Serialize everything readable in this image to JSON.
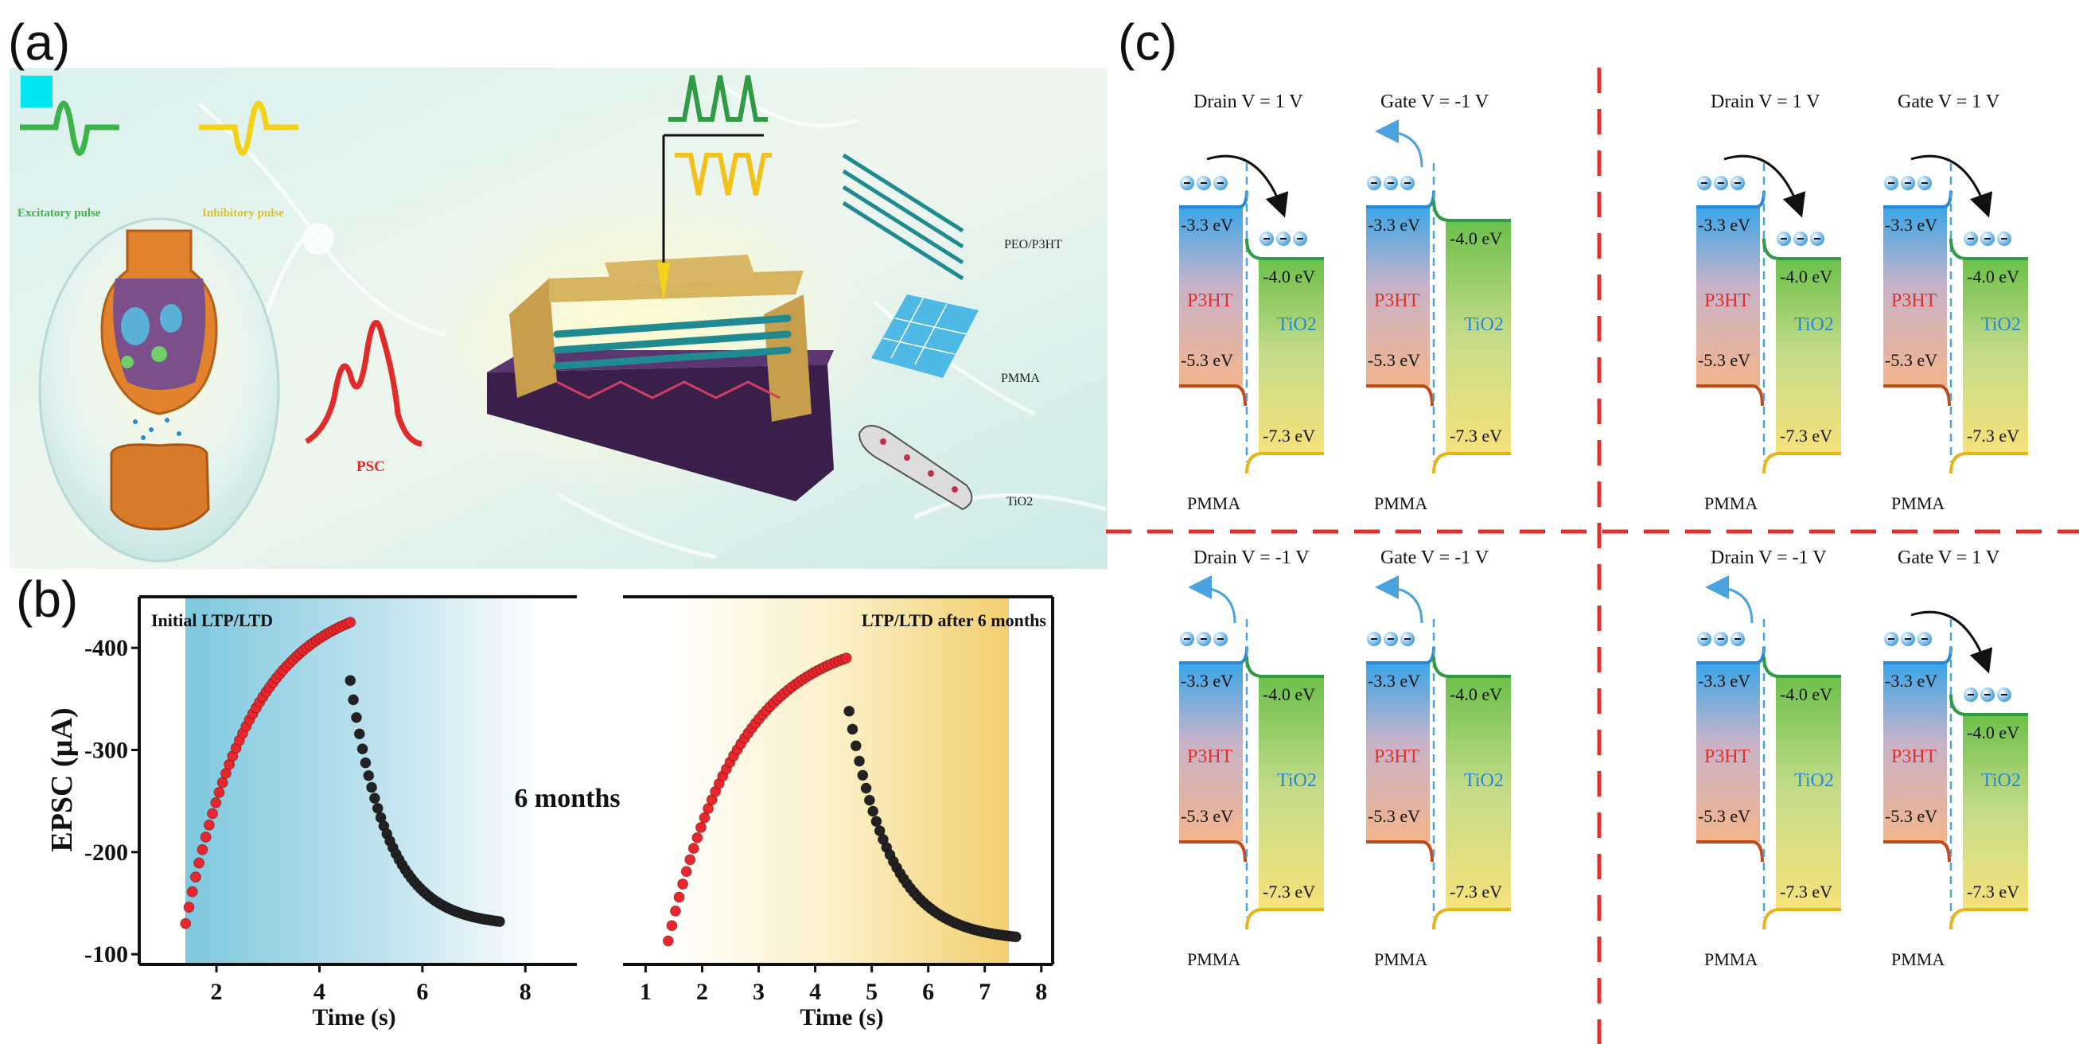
{
  "panels": {
    "a": {
      "label": "(a)",
      "excitatory_label": "Excitatory pulse",
      "inhibitory_label": "Inhibitory pulse",
      "psc_label": "PSC",
      "layers": [
        "PEO/P3HT",
        "PMMA",
        "TiO2"
      ]
    },
    "b": {
      "label": "(b)",
      "middle_text": "6 months"
    },
    "c": {
      "label": "(c)",
      "diagrams": [
        {
          "drain": "Drain V = 1 V",
          "gate": "Gate V = -1 V",
          "p3ht_label": "P3HT",
          "tio2_label": "TiO2",
          "pmma_label": "PMMA",
          "e1": "-3.3 eV",
          "e2": "-5.3 eV",
          "e3": "-4.0 eV",
          "e4": "-7.3 eV"
        },
        {
          "drain": "Drain V = 1 V",
          "gate": "Gate V = 1 V",
          "p3ht_label": "P3HT",
          "tio2_label": "TiO2",
          "pmma_label": "PMMA",
          "e1": "-3.3 eV",
          "e2": "-5.3 eV",
          "e3": "-4.0 eV",
          "e4": "-7.3 eV"
        },
        {
          "drain": "Drain V = -1 V",
          "gate": "Gate V = -1 V",
          "p3ht_label": "P3HT",
          "tio2_label": "TiO2",
          "pmma_label": "PMMA",
          "e1": "-3.3 eV",
          "e2": "-5.3 eV",
          "e3": "-4.0 eV",
          "e4": "-7.3 eV"
        },
        {
          "drain": "Drain V = -1 V",
          "gate": "Gate V = 1 V",
          "p3ht_label": "P3HT",
          "tio2_label": "TiO2",
          "pmma_label": "PMMA",
          "e1": "-3.3 eV",
          "e2": "-5.3 eV",
          "e3": "-4.0 eV",
          "e4": "-7.3 eV"
        }
      ]
    }
  },
  "colors": {
    "ltp": "#e8262b",
    "ltd": "#222222",
    "red_dash": "#e03030",
    "p3ht_top": "#3aa6e8",
    "p3ht_bottom": "#f2b48c",
    "tio2_top": "#6cc04a",
    "tio2_bottom": "#f6e27a"
  },
  "chart_data": [
    {
      "type": "scatter",
      "title": "Initial LTP/LTD",
      "xlabel": "Time (s)",
      "ylabel": "EPSC (µA)",
      "xlim": [
        0.5,
        9
      ],
      "ylim": [
        -90,
        -450
      ],
      "xticks": [
        "2",
        "4",
        "6",
        "8"
      ],
      "yticks": [
        "-100",
        "-200",
        "-300",
        "-400"
      ],
      "series": [
        {
          "name": "LTP",
          "x_start": 1.4,
          "x_end": 4.6,
          "n": 50,
          "y_start": -130,
          "y_end": -425,
          "decay": 2.5
        },
        {
          "name": "LTD",
          "x_start": 4.6,
          "x_end": 7.5,
          "n": 50,
          "y_start": -368,
          "y_end": -132,
          "decay": 4
        }
      ]
    },
    {
      "type": "scatter",
      "title": "LTP/LTD after 6 months",
      "xlabel": "Time (s)",
      "ylabel": "",
      "xlim": [
        0.6,
        8.2
      ],
      "ylim": [
        -90,
        -450
      ],
      "xticks": [
        "1",
        "2",
        "3",
        "4",
        "5",
        "6",
        "7",
        "8"
      ],
      "yticks": [],
      "series": [
        {
          "name": "LTP",
          "x_start": 1.4,
          "x_end": 4.55,
          "n": 50,
          "y_start": -113,
          "y_end": -390,
          "decay": 2.5
        },
        {
          "name": "LTD",
          "x_start": 4.6,
          "x_end": 7.55,
          "n": 50,
          "y_start": -338,
          "y_end": -117,
          "decay": 4
        }
      ]
    }
  ]
}
